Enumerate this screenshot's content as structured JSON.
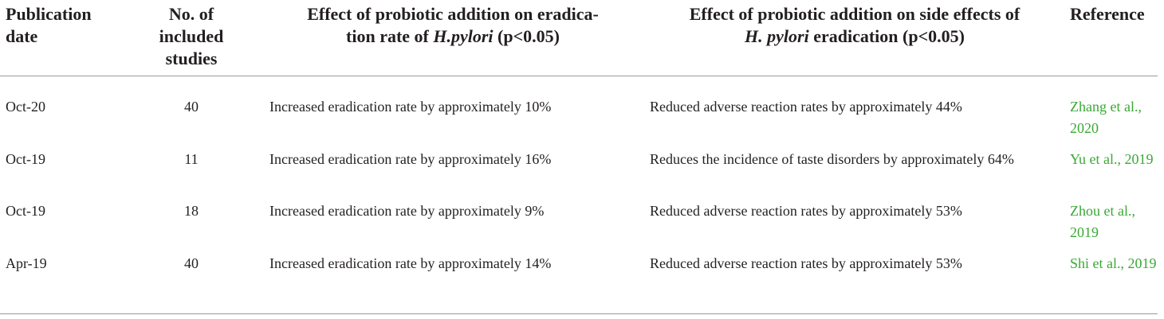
{
  "headers": {
    "publication_date": "Publication date",
    "num_studies": "No. of included studies",
    "effect_eradication_line1": "Effect of probiotic addition on eradica-",
    "effect_eradication_pre": "tion rate of ",
    "effect_eradication_italic": "H.pylori",
    "effect_eradication_post": " (p<0.05)",
    "effect_side_line1": "Effect of probiotic addition on side effects of",
    "effect_side_italic": "H. pylori",
    "effect_side_post": " eradication (p<0.05)",
    "reference": "Reference"
  },
  "rows": [
    {
      "date": "Oct-20",
      "studies": "40",
      "eradication": "Increased eradication rate by approximately 10%",
      "side_effects": "Reduced adverse reaction rates by approximately 44%",
      "reference": "Zhang et al., 2020"
    },
    {
      "date": "Oct-19",
      "studies": "11",
      "eradication": "Increased eradication rate by approximately 16%",
      "side_effects": "Reduces the incidence of taste disorders by approximately 64%",
      "reference": "Yu et al., 2019"
    },
    {
      "date": "Oct-19",
      "studies": "18",
      "eradication": "Increased eradication rate by approximately 9%",
      "side_effects": "Reduced adverse reaction rates by approximately 53%",
      "reference": "Zhou et al., 2019"
    },
    {
      "date": "Apr-19",
      "studies": "40",
      "eradication": "Increased eradication rate by approximately 14%",
      "side_effects": "Reduced adverse reaction rates by approximately 53%",
      "reference": "Shi et al., 2019"
    }
  ],
  "colors": {
    "text": "#231f20",
    "reference_link": "#3aa935",
    "rule": "#9a9a9a"
  }
}
